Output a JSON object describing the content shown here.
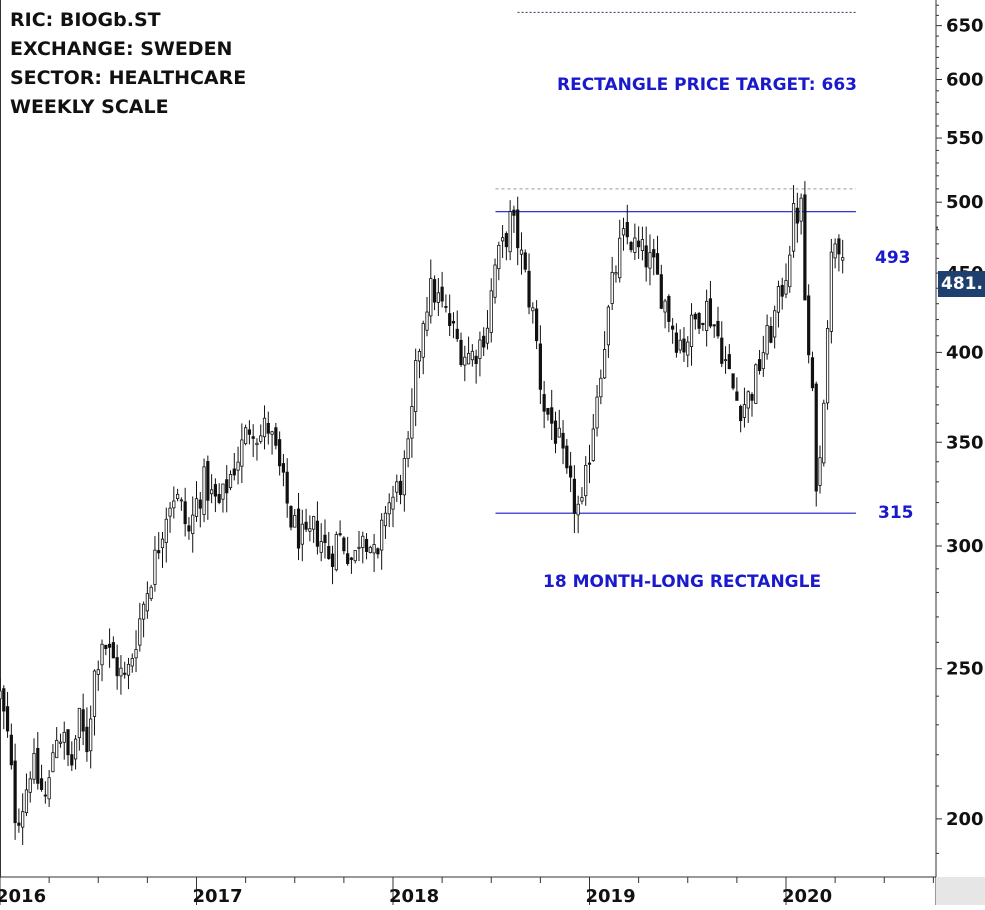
{
  "info": {
    "ric": "RIC: BIOGb.ST",
    "exchange": "EXCHANGE: SWEDEN",
    "sector": "SECTOR: HEALTHCARE",
    "scale": "WEEKLY SCALE"
  },
  "annotations": {
    "target_label": "RECTANGLE PRICE TARGET: 663",
    "upper_label": "493",
    "lower_label": "315",
    "pattern_label": "18 MONTH-LONG RECTANGLE"
  },
  "last_price": {
    "text": "481.",
    "value": 481.5
  },
  "colors": {
    "candle": "#111111",
    "pattern_line": "#1a1acc",
    "annotation_text": "#1a1acc",
    "price_badge_bg": "#1f3f6e",
    "axis": "#333333",
    "dotted_line": "#999999"
  },
  "chart_data": {
    "type": "candlestick",
    "title": "",
    "xlabel": "",
    "ylabel": "",
    "y_scale": "log",
    "ylim": [
      165,
      790
    ],
    "xlim": [
      "2016-01-01",
      "2020-12-31"
    ],
    "y_ticks": [
      200,
      250,
      300,
      350,
      400,
      450,
      500,
      550,
      600,
      650,
      700,
      750
    ],
    "x_tick_labels": [
      "2016",
      "2017",
      "2018",
      "2019",
      "2020"
    ],
    "grid": false,
    "legend": "none",
    "horizontal_levels": [
      {
        "label": "493",
        "value": 493,
        "style": "solid",
        "from": "2018-07-10",
        "to": "2020-05-10"
      },
      {
        "label": "315",
        "value": 315,
        "style": "solid",
        "from": "2018-07-10",
        "to": "2020-05-10"
      },
      {
        "label": "RECTANGLE PRICE TARGET: 663",
        "value": 663,
        "style": "dotted",
        "from": "2018-08-20",
        "to": "2020-05-10"
      },
      {
        "label": "",
        "value": 510,
        "style": "dotted",
        "from": "2018-07-10",
        "to": "2020-05-10"
      }
    ],
    "closes": [
      [
        0,
        240
      ],
      [
        0.04,
        225
      ],
      [
        0.08,
        200
      ],
      [
        0.12,
        205
      ],
      [
        0.16,
        218
      ],
      [
        0.2,
        210
      ],
      [
        0.24,
        205
      ],
      [
        0.28,
        228
      ],
      [
        0.32,
        226
      ],
      [
        0.36,
        215
      ],
      [
        0.4,
        232
      ],
      [
        0.44,
        222
      ],
      [
        0.48,
        248
      ],
      [
        0.52,
        262
      ],
      [
        0.56,
        255
      ],
      [
        0.6,
        250
      ],
      [
        0.64,
        245
      ],
      [
        0.68,
        258
      ],
      [
        0.72,
        272
      ],
      [
        0.76,
        285
      ],
      [
        0.8,
        298
      ],
      [
        0.84,
        315
      ],
      [
        0.88,
        325
      ],
      [
        0.92,
        318
      ],
      [
        0.96,
        305
      ],
      [
        1.0,
        320
      ],
      [
        1.04,
        330
      ],
      [
        1.08,
        322
      ],
      [
        1.12,
        318
      ],
      [
        1.16,
        330
      ],
      [
        1.2,
        340
      ],
      [
        1.24,
        350
      ],
      [
        1.28,
        362
      ],
      [
        1.32,
        352
      ],
      [
        1.36,
        360
      ],
      [
        1.4,
        345
      ],
      [
        1.44,
        328
      ],
      [
        1.48,
        312
      ],
      [
        1.52,
        305
      ],
      [
        1.56,
        300
      ],
      [
        1.6,
        308
      ],
      [
        1.64,
        302
      ],
      [
        1.68,
        295
      ],
      [
        1.72,
        305
      ],
      [
        1.76,
        300
      ],
      [
        1.8,
        292
      ],
      [
        1.84,
        310
      ],
      [
        1.88,
        302
      ],
      [
        1.92,
        290
      ],
      [
        1.96,
        318
      ],
      [
        2.0,
        322
      ],
      [
        2.04,
        330
      ],
      [
        2.08,
        345
      ],
      [
        2.12,
        392
      ],
      [
        2.16,
        428
      ],
      [
        2.2,
        440
      ],
      [
        2.24,
        430
      ],
      [
        2.28,
        420
      ],
      [
        2.32,
        408
      ],
      [
        2.36,
        400
      ],
      [
        2.4,
        398
      ],
      [
        2.44,
        405
      ],
      [
        2.48,
        418
      ],
      [
        2.52,
        455
      ],
      [
        2.56,
        468
      ],
      [
        2.6,
        488
      ],
      [
        2.64,
        470
      ],
      [
        2.68,
        442
      ],
      [
        2.72,
        418
      ],
      [
        2.76,
        372
      ],
      [
        2.8,
        362
      ],
      [
        2.84,
        352
      ],
      [
        2.88,
        332
      ],
      [
        2.92,
        320
      ],
      [
        2.96,
        315
      ],
      [
        3.0,
        345
      ],
      [
        3.04,
        380
      ],
      [
        3.08,
        410
      ],
      [
        3.12,
        445
      ],
      [
        3.16,
        470
      ],
      [
        3.2,
        475
      ],
      [
        3.24,
        465
      ],
      [
        3.28,
        462
      ],
      [
        3.32,
        455
      ],
      [
        3.36,
        440
      ],
      [
        3.4,
        425
      ],
      [
        3.44,
        410
      ],
      [
        3.48,
        405
      ],
      [
        3.52,
        415
      ],
      [
        3.56,
        425
      ],
      [
        3.6,
        428
      ],
      [
        3.64,
        415
      ],
      [
        3.68,
        400
      ],
      [
        3.72,
        382
      ],
      [
        3.76,
        370
      ],
      [
        3.8,
        372
      ],
      [
        3.84,
        382
      ],
      [
        3.88,
        400
      ],
      [
        3.92,
        412
      ],
      [
        3.96,
        430
      ],
      [
        4.0,
        452
      ],
      [
        4.04,
        490
      ],
      [
        4.08,
        495
      ],
      [
        4.1,
        420
      ],
      [
        4.12,
        390
      ],
      [
        4.14,
        365
      ],
      [
        4.16,
        320
      ],
      [
        4.18,
        350
      ],
      [
        4.2,
        400
      ],
      [
        4.22,
        440
      ],
      [
        4.24,
        475
      ],
      [
        4.26,
        480
      ],
      [
        4.28,
        465
      ],
      [
        4.3,
        481.5
      ]
    ]
  }
}
